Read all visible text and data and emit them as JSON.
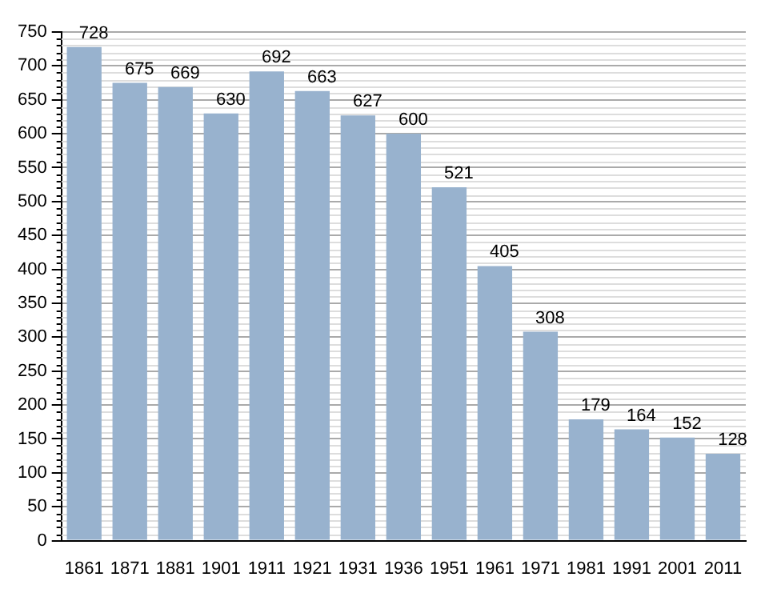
{
  "chart_data": {
    "type": "bar",
    "categories": [
      "1861",
      "1871",
      "1881",
      "1901",
      "1911",
      "1921",
      "1931",
      "1936",
      "1951",
      "1961",
      "1971",
      "1981",
      "1991",
      "2001",
      "2011"
    ],
    "values": [
      728,
      675,
      669,
      630,
      692,
      663,
      627,
      600,
      521,
      405,
      308,
      179,
      164,
      152,
      128
    ],
    "color": "#98b2ce",
    "ylim": [
      0,
      750
    ],
    "yticks": [
      0,
      50,
      100,
      150,
      200,
      250,
      300,
      350,
      400,
      450,
      500,
      550,
      600,
      650,
      700,
      750
    ],
    "grid": "y",
    "data_labels": true,
    "legend": false
  }
}
